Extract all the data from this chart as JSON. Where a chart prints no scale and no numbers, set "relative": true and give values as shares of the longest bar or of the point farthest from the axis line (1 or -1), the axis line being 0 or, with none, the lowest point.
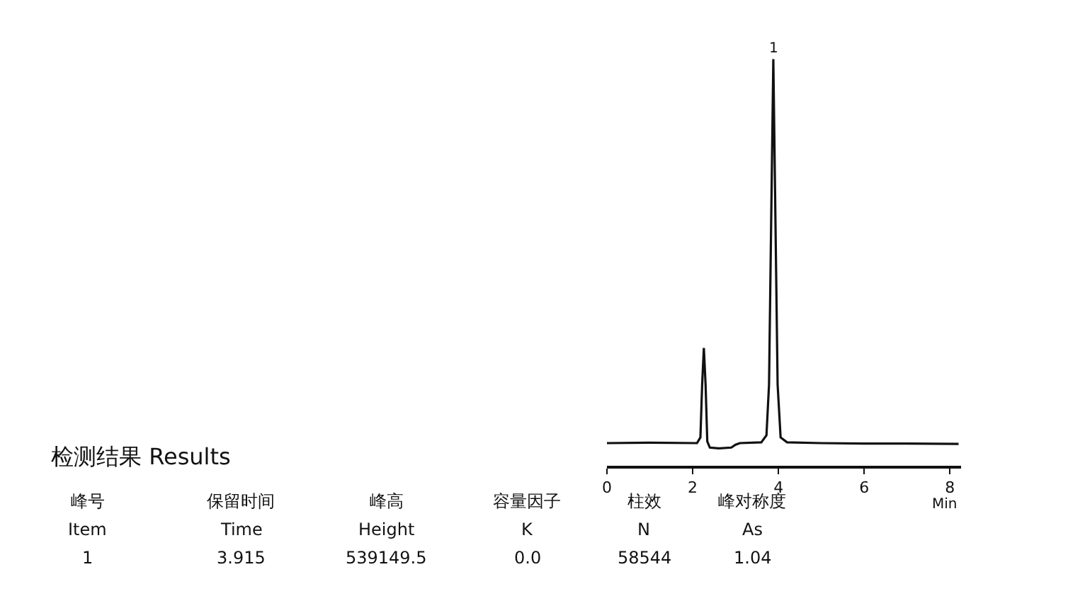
{
  "chart_data": {
    "type": "line",
    "relative": true,
    "title": "检测结果 Results",
    "xlabel": "Min",
    "x": [
      0,
      1.0,
      2.1,
      2.18,
      2.22,
      2.26,
      2.3,
      2.34,
      2.4,
      2.6,
      2.9,
      3.0,
      3.1,
      3.6,
      3.72,
      3.78,
      3.83,
      3.88,
      3.93,
      3.98,
      4.05,
      4.2,
      5.0,
      6.0,
      7.0,
      8.2
    ],
    "series": [
      {
        "color": "#111111",
        "values": [
          0.056,
          0.057,
          0.056,
          0.07,
          0.2,
          0.29,
          0.2,
          0.06,
          0.045,
          0.043,
          0.045,
          0.052,
          0.056,
          0.058,
          0.075,
          0.2,
          0.6,
          1.0,
          0.6,
          0.2,
          0.07,
          0.058,
          0.056,
          0.055,
          0.055,
          0.054
        ]
      }
    ],
    "xlim": [
      0,
      8.25
    ],
    "xticks": [
      0,
      2,
      4,
      6,
      8
    ],
    "legend": false,
    "marker": "none",
    "line_style": "solid",
    "annotations": [
      {
        "text": "1",
        "x": 3.88,
        "y": 1.0
      },
      "峰号",
      "保留时间",
      "峰高",
      "容量因子",
      "柱效",
      "峰对称度",
      "Item",
      "Time",
      "Height",
      "K",
      "N",
      "As",
      "1",
      "3.915",
      "539149.5",
      "0.0",
      "58544",
      "1.04"
    ]
  }
}
